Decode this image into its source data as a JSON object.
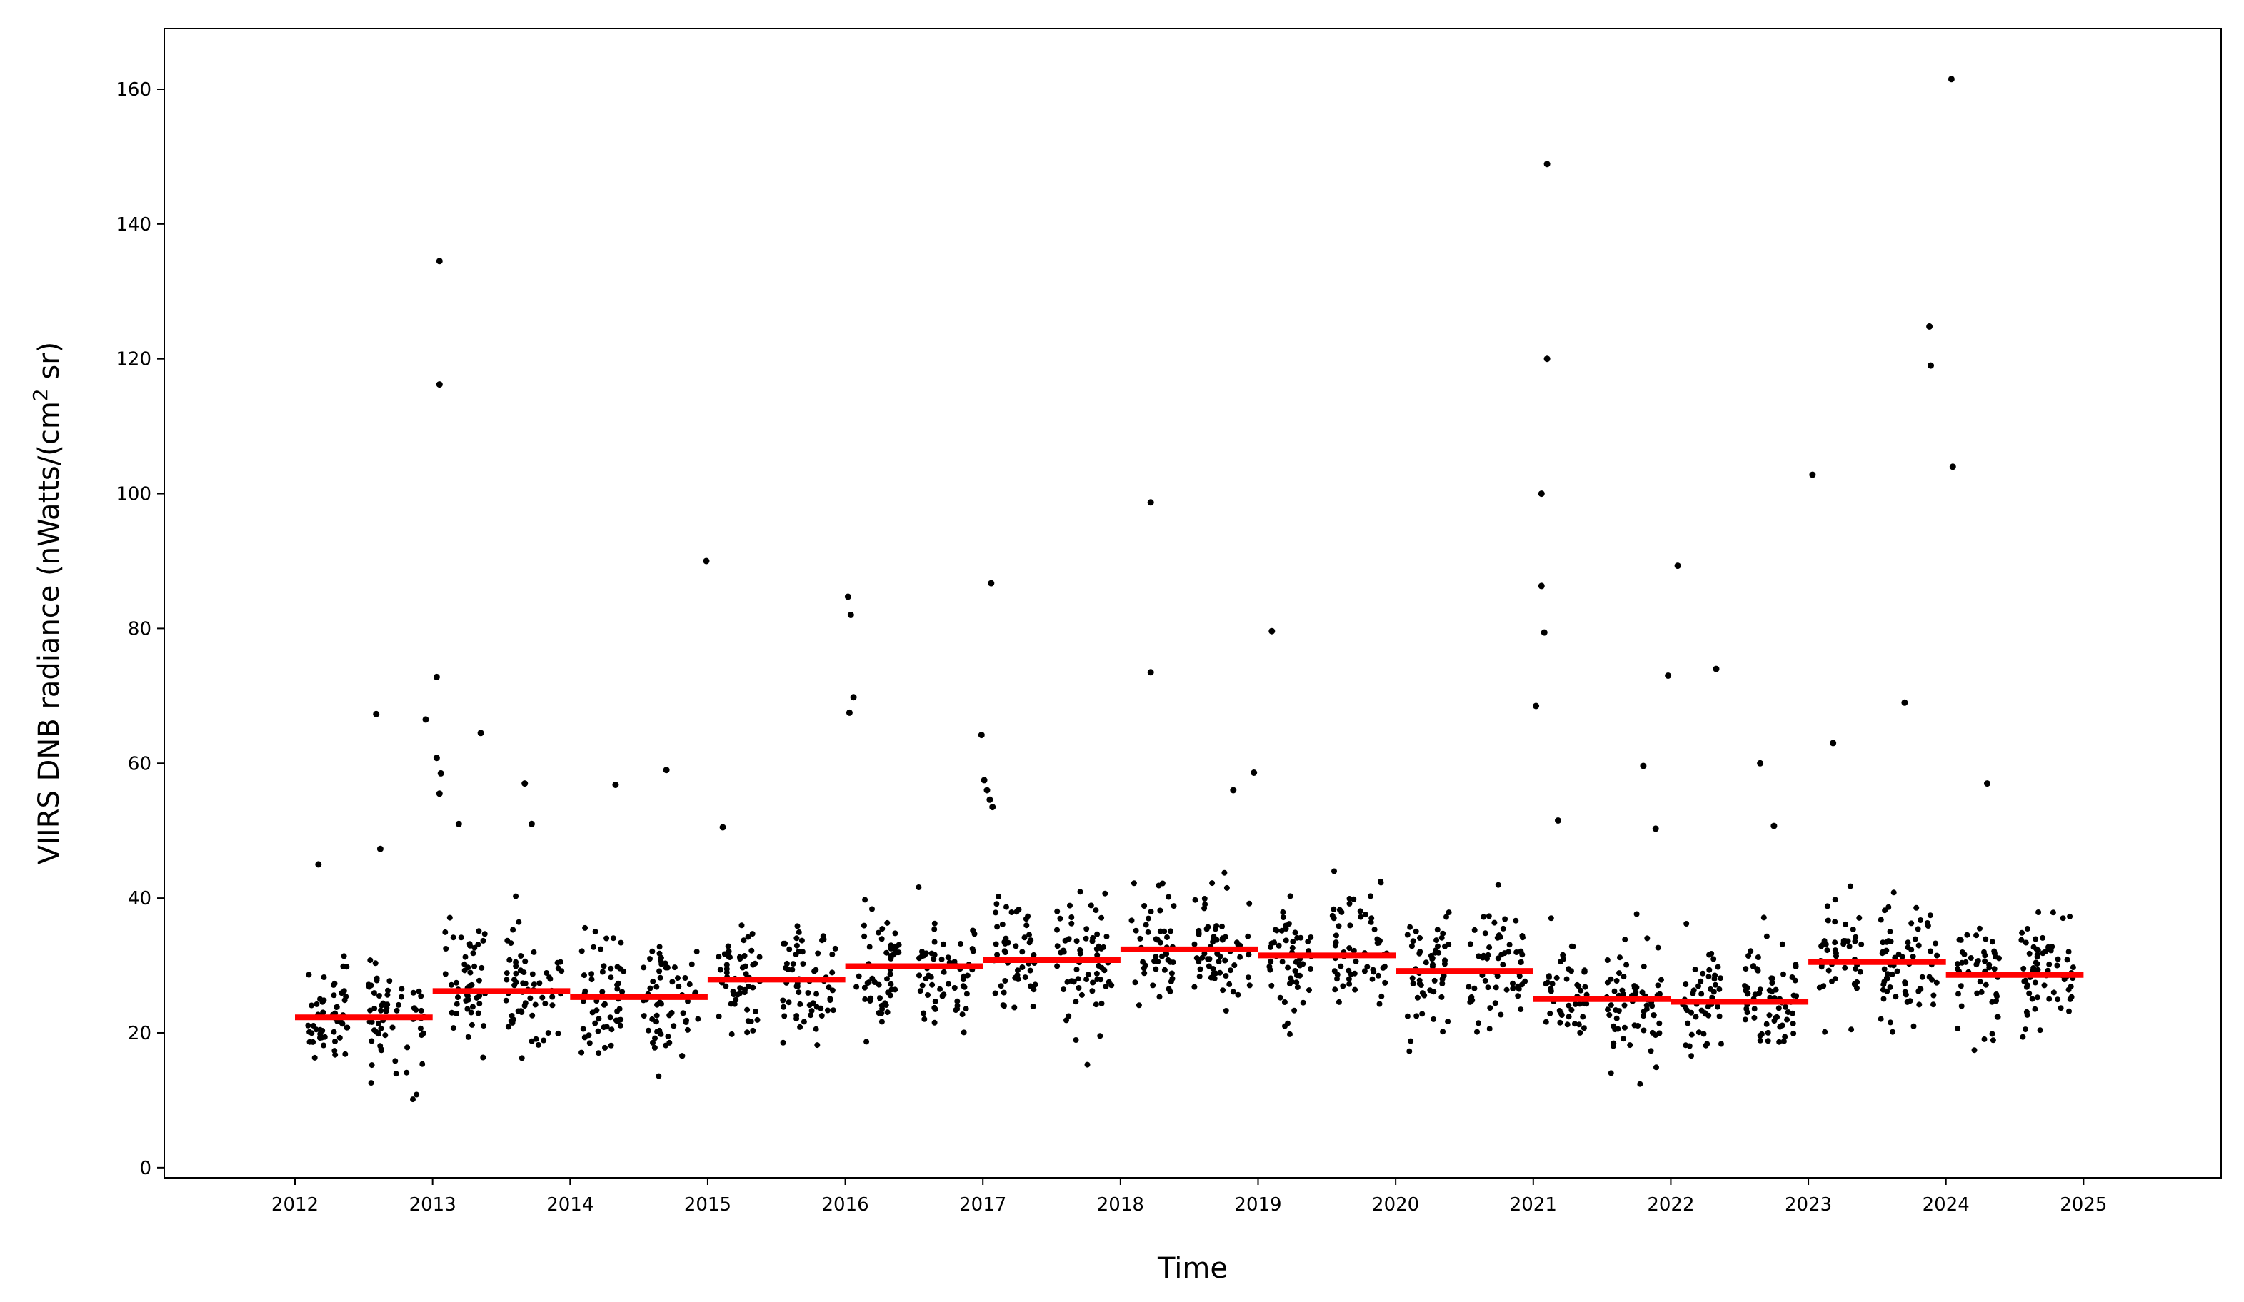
{
  "chart_data": {
    "type": "scatter",
    "title": "",
    "xlabel": "Time",
    "ylabel": {
      "main": "VIIRS DNB radiance (nWatts/(cm",
      "superscript": "2",
      "tail": " sr)"
    },
    "xlim": [
      2011.05,
      2026.0
    ],
    "ylim": [
      -1.5,
      169
    ],
    "xticks": [
      "2012",
      "2013",
      "2014",
      "2015",
      "2016",
      "2017",
      "2018",
      "2019",
      "2020",
      "2021",
      "2022",
      "2023",
      "2024",
      "2025"
    ],
    "yticks": [
      "0",
      "20",
      "40",
      "60",
      "80",
      "100",
      "120",
      "140",
      "160"
    ],
    "grid": false,
    "legend": "none",
    "colors": {
      "points": "#000000",
      "annual_mean": "#ff0000"
    },
    "annual_mean": [
      {
        "year": 2012,
        "value": 22.3
      },
      {
        "year": 2013,
        "value": 26.2
      },
      {
        "year": 2014,
        "value": 25.3
      },
      {
        "year": 2015,
        "value": 27.9
      },
      {
        "year": 2016,
        "value": 29.9
      },
      {
        "year": 2017,
        "value": 30.8
      },
      {
        "year": 2018,
        "value": 32.4
      },
      {
        "year": 2019,
        "value": 31.5
      },
      {
        "year": 2020,
        "value": 29.2
      },
      {
        "year": 2021,
        "value": 25.0
      },
      {
        "year": 2022,
        "value": 24.6
      },
      {
        "year": 2023,
        "value": 30.5
      },
      {
        "year": 2024,
        "value": 28.6
      }
    ],
    "outliers": [
      [
        2012.17,
        45
      ],
      [
        2012.59,
        67.3
      ],
      [
        2012.62,
        47.3
      ],
      [
        2012.95,
        66.5
      ],
      [
        2013.05,
        134.5
      ],
      [
        2013.05,
        116.2
      ],
      [
        2013.03,
        72.8
      ],
      [
        2013.03,
        60.8
      ],
      [
        2013.06,
        58.5
      ],
      [
        2013.05,
        55.5
      ],
      [
        2013.19,
        51
      ],
      [
        2013.35,
        64.5
      ],
      [
        2013.67,
        57
      ],
      [
        2013.72,
        51
      ],
      [
        2014.33,
        56.8
      ],
      [
        2014.7,
        59
      ],
      [
        2014.99,
        90
      ],
      [
        2015.11,
        50.5
      ],
      [
        2016.02,
        84.7
      ],
      [
        2016.04,
        82
      ],
      [
        2016.06,
        69.8
      ],
      [
        2016.03,
        67.5
      ],
      [
        2016.99,
        64.2
      ],
      [
        2017.01,
        57.5
      ],
      [
        2017.03,
        56
      ],
      [
        2017.05,
        54.6
      ],
      [
        2017.07,
        53.5
      ],
      [
        2017.06,
        86.7
      ],
      [
        2018.22,
        98.7
      ],
      [
        2018.22,
        73.5
      ],
      [
        2018.82,
        56
      ],
      [
        2018.97,
        58.6
      ],
      [
        2019.1,
        79.6
      ],
      [
        2021.02,
        68.5
      ],
      [
        2021.1,
        148.9
      ],
      [
        2021.1,
        120
      ],
      [
        2021.06,
        100
      ],
      [
        2021.06,
        86.3
      ],
      [
        2021.08,
        79.4
      ],
      [
        2021.18,
        51.5
      ],
      [
        2021.8,
        59.6
      ],
      [
        2021.89,
        50.3
      ],
      [
        2021.98,
        73
      ],
      [
        2022.05,
        89.3
      ],
      [
        2022.33,
        74
      ],
      [
        2022.65,
        60
      ],
      [
        2022.75,
        50.7
      ],
      [
        2023.03,
        102.8
      ],
      [
        2023.18,
        63
      ],
      [
        2023.7,
        69
      ],
      [
        2023.88,
        124.8
      ],
      [
        2023.89,
        119
      ],
      [
        2024.04,
        161.5
      ],
      [
        2024.05,
        104
      ],
      [
        2024.3,
        57
      ]
    ]
  }
}
